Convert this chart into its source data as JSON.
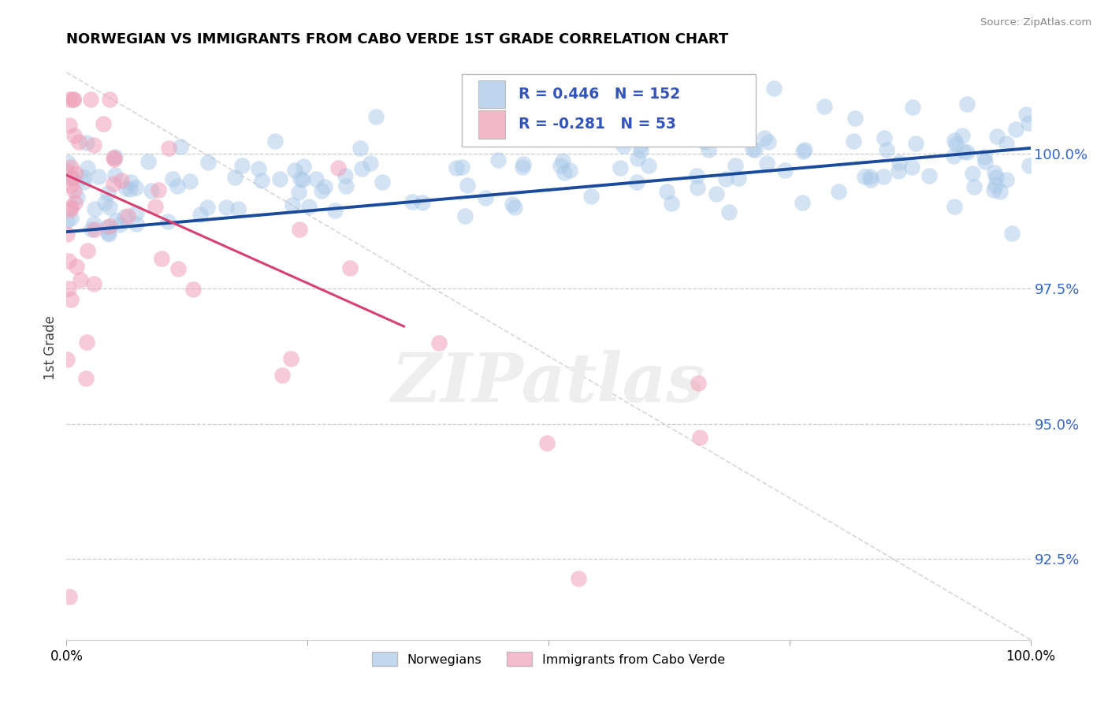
{
  "title": "NORWEGIAN VS IMMIGRANTS FROM CABO VERDE 1ST GRADE CORRELATION CHART",
  "source": "Source: ZipAtlas.com",
  "ylabel": "1st Grade",
  "blue_R": 0.446,
  "blue_N": 152,
  "pink_R": -0.281,
  "pink_N": 53,
  "blue_color": "#a8c8e8",
  "blue_line_color": "#1a4a9a",
  "pink_color": "#f0a0b8",
  "pink_line_color": "#d84070",
  "background_color": "#ffffff",
  "legend_norwegians": "Norwegians",
  "legend_immigrants": "Immigrants from Cabo Verde",
  "yticks": [
    92.5,
    95.0,
    97.5,
    100.0
  ],
  "xmin": 0.0,
  "xmax": 100.0,
  "ymin": 91.0,
  "ymax": 101.8,
  "blue_trend_x": [
    0,
    100
  ],
  "blue_trend_y": [
    98.55,
    100.1
  ],
  "pink_trend_x": [
    0,
    35
  ],
  "pink_trend_y": [
    99.6,
    96.8
  ],
  "diag_line_x": [
    0,
    100
  ],
  "diag_line_y": [
    101.5,
    91.0
  ]
}
